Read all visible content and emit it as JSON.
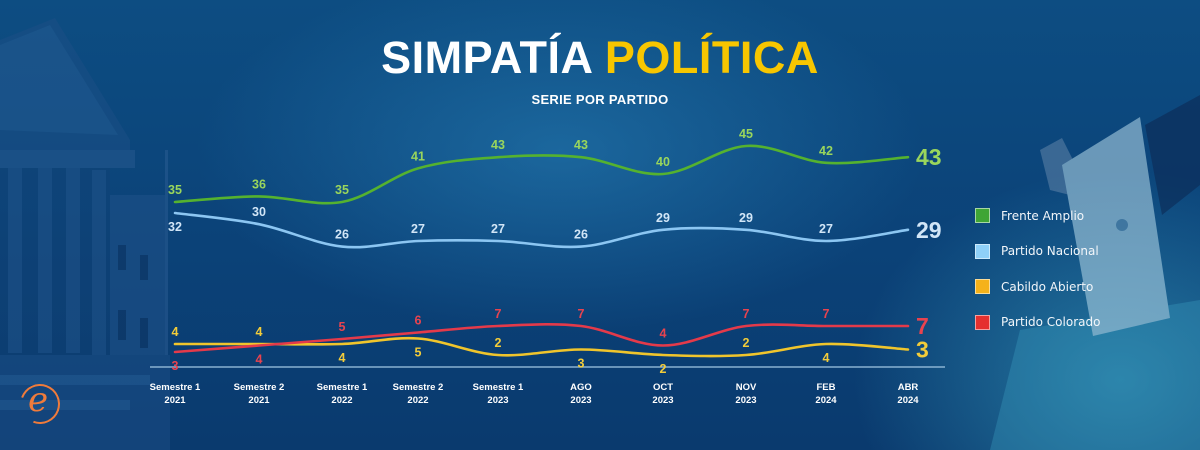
{
  "header": {
    "title_part1": "SIMPATÍA",
    "title_part2": "POLÍTICA",
    "subtitle": "SERIE POR PARTIDO"
  },
  "logo": {
    "glyph": "e",
    "color": "#ef7b3b"
  },
  "legend": [
    {
      "label": "Frente Amplio",
      "color": "#3fa535"
    },
    {
      "label": "Partido Nacional",
      "color": "#8fd0f8"
    },
    {
      "label": "Cabildo Abierto",
      "color": "#f5b21a"
    },
    {
      "label": "Partido Colorado",
      "color": "#e5302f"
    }
  ],
  "chart_data": {
    "type": "line",
    "title": "SIMPATÍA POLÍTICA",
    "subtitle": "SERIE POR PARTIDO",
    "xlabel": "",
    "ylabel": "",
    "grid": false,
    "legend_position": "right",
    "categories": [
      {
        "line1": "Semestre 1",
        "line2": "2021"
      },
      {
        "line1": "Semestre 2",
        "line2": "2021"
      },
      {
        "line1": "Semestre 1",
        "line2": "2022"
      },
      {
        "line1": "Semestre 2",
        "line2": "2022"
      },
      {
        "line1": "Semestre 1",
        "line2": "2023"
      },
      {
        "line1": "AGO",
        "line2": "2023"
      },
      {
        "line1": "OCT",
        "line2": "2023"
      },
      {
        "line1": "NOV",
        "line2": "2023"
      },
      {
        "line1": "FEB",
        "line2": "2024"
      },
      {
        "line1": "ABR",
        "line2": "2024"
      }
    ],
    "series": [
      {
        "name": "Frente Amplio",
        "color": "#55b22f",
        "label_color": "#9ad65c",
        "values": [
          35,
          36,
          35,
          41,
          43,
          43,
          40,
          45,
          42,
          43
        ]
      },
      {
        "name": "Partido Nacional",
        "color": "#8cc6f2",
        "label_color": "#d2e6f7",
        "values": [
          32,
          30,
          26,
          27,
          27,
          26,
          29,
          29,
          27,
          29
        ]
      },
      {
        "name": "Cabildo Abierto",
        "color": "#f0c52c",
        "label_color": "#f2cc3a",
        "values": [
          4,
          4,
          4,
          5,
          2,
          3,
          2,
          2,
          4,
          3
        ]
      },
      {
        "name": "Partido Colorado",
        "color": "#e43a4a",
        "label_color": "#e8434f",
        "values": [
          3,
          4,
          5,
          6,
          7,
          7,
          4,
          7,
          7,
          7
        ]
      }
    ]
  }
}
